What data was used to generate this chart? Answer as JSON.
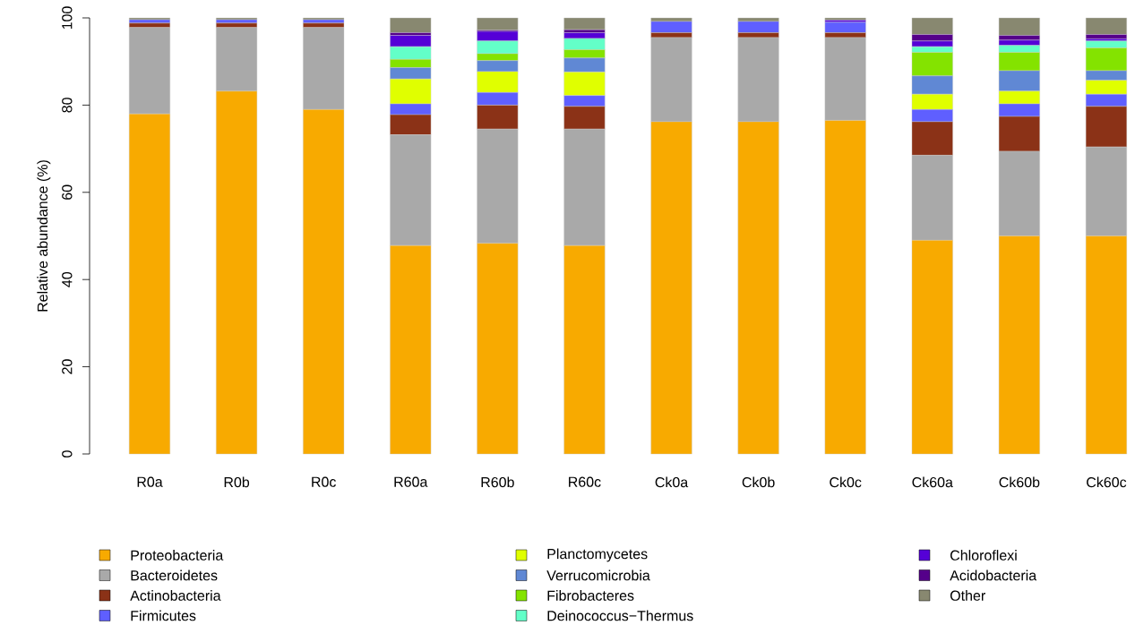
{
  "chart_data": {
    "type": "bar",
    "stacked": true,
    "ylabel": "Relative abundance (%)",
    "categories": [
      "R0a",
      "R0b",
      "R0c",
      "R60a",
      "R60b",
      "R60c",
      "Ck0a",
      "Ck0b",
      "Ck0c",
      "Ck60a",
      "Ck60b",
      "Ck60c"
    ],
    "ylim": [
      0,
      100
    ],
    "yticks": [
      0,
      20,
      40,
      60,
      80,
      100
    ],
    "legend": "bottom",
    "grid": false,
    "series": [
      {
        "name": "Proteobacteria",
        "color": "#f8aa00",
        "values": [
          78.0,
          83.2,
          79.0,
          47.8,
          48.3,
          47.8,
          76.2,
          76.2,
          76.5,
          49.0,
          50.0,
          50.0
        ]
      },
      {
        "name": "Bacteroidetes",
        "color": "#a9a9a9",
        "values": [
          19.8,
          14.6,
          18.8,
          25.4,
          26.2,
          26.7,
          19.3,
          19.3,
          19.0,
          19.5,
          19.4,
          20.4
        ]
      },
      {
        "name": "Actinobacteria",
        "color": "#8b3217",
        "values": [
          1.0,
          1.0,
          1.0,
          4.6,
          5.5,
          5.2,
          1.1,
          1.1,
          1.1,
          7.7,
          8.0,
          9.3
        ]
      },
      {
        "name": "Firmicutes",
        "color": "#5f5fff",
        "values": [
          0.8,
          0.8,
          0.8,
          2.5,
          2.9,
          2.5,
          2.6,
          2.6,
          2.4,
          2.8,
          2.9,
          2.8
        ]
      },
      {
        "name": "Planctomycetes",
        "color": "#e0ff00",
        "values": [
          0,
          0,
          0,
          5.7,
          4.8,
          5.4,
          0,
          0,
          0,
          3.5,
          2.9,
          3.2
        ]
      },
      {
        "name": "Verrucomicrobia",
        "color": "#6088d4",
        "values": [
          0,
          0,
          0,
          2.6,
          2.5,
          3.2,
          0,
          0,
          0,
          4.2,
          4.7,
          2.2
        ]
      },
      {
        "name": "Fibrobacteres",
        "color": "#84e300",
        "values": [
          0,
          0,
          0,
          1.9,
          1.6,
          1.9,
          0,
          0,
          0,
          5.4,
          4.2,
          5.2
        ]
      },
      {
        "name": "Deinococcus−Thermus",
        "color": "#63ffc8",
        "values": [
          0,
          0,
          0,
          2.9,
          2.9,
          2.6,
          0,
          0,
          0,
          1.3,
          1.6,
          1.6
        ]
      },
      {
        "name": "Chloroflexi",
        "color": "#5500d7",
        "values": [
          0,
          0,
          0,
          2.6,
          2.2,
          1.3,
          0,
          0,
          0.5,
          1.3,
          1.2,
          0.5
        ]
      },
      {
        "name": "Acidobacteria",
        "color": "#55008a",
        "values": [
          0,
          0,
          0,
          0.6,
          0.3,
          0.7,
          0,
          0,
          0,
          1.5,
          1.1,
          1.0
        ]
      },
      {
        "name": "Other",
        "color": "#888870",
        "values": [
          0.4,
          0.4,
          0.4,
          3.4,
          2.8,
          2.7,
          0.8,
          0.8,
          0.5,
          3.8,
          4.0,
          3.8
        ]
      }
    ]
  }
}
